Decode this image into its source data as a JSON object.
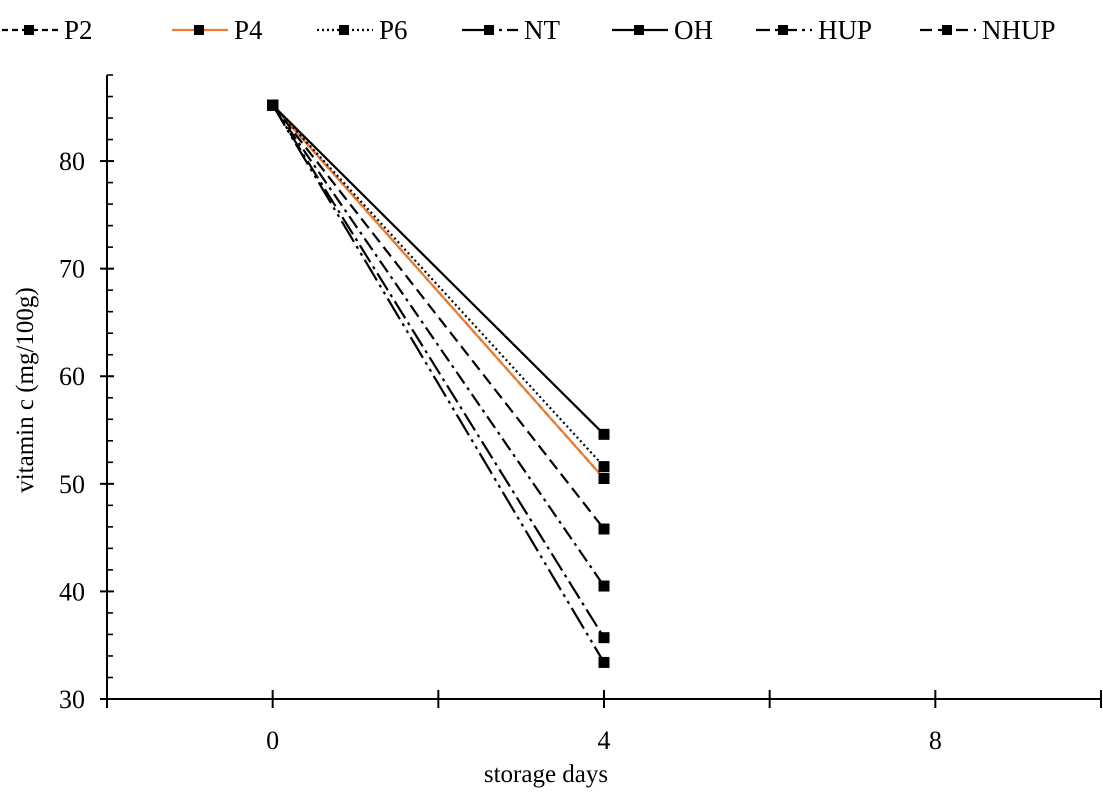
{
  "chart_data": {
    "type": "line",
    "title": "",
    "xlabel": "storage days",
    "ylabel": "vitamin c (mg/100g)",
    "x": [
      0,
      4
    ],
    "x_tick_labels": [
      "0",
      "4",
      "8"
    ],
    "y_tick_labels": [
      "30",
      "40",
      "50",
      "60",
      "70",
      "80"
    ],
    "xlim": [
      -2,
      10
    ],
    "ylim": [
      30,
      88
    ],
    "grid": false,
    "legend_position": "top",
    "series": [
      {
        "name": "P2",
        "values": [
          85.2,
          50.5
        ],
        "color": "#000000",
        "dash": "short-dash"
      },
      {
        "name": "P4",
        "values": [
          85.2,
          50.5
        ],
        "color": "#ED7D31",
        "dash": "solid"
      },
      {
        "name": "P6",
        "values": [
          85.2,
          51.6
        ],
        "color": "#000000",
        "dash": "dotted"
      },
      {
        "name": "NT",
        "values": [
          85.2,
          33.4
        ],
        "color": "#000000",
        "dash": "long-dash-dot-dot"
      },
      {
        "name": "OH",
        "values": [
          85.2,
          54.6
        ],
        "color": "#000000",
        "dash": "solid"
      },
      {
        "name": "HUP",
        "values": [
          85.2,
          40.5
        ],
        "color": "#000000",
        "dash": "dash-dot"
      },
      {
        "name": "NHUP",
        "values": [
          85.2,
          45.8
        ],
        "color": "#000000",
        "dash": "dash"
      }
    ],
    "extra_line_at_4": {
      "values": [
        85.2,
        35.7
      ],
      "color": "#000000",
      "dash": "long-dash-dot"
    }
  }
}
